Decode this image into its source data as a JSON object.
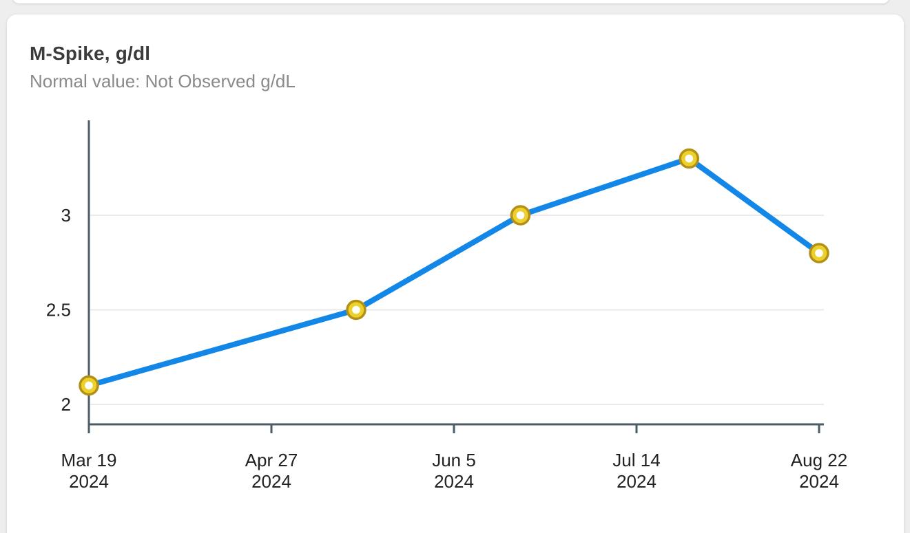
{
  "card": {
    "title": "M-Spike, g/dl",
    "subtitle": "Normal value: Not Observed g/dL"
  },
  "colors": {
    "page_bg": "#eeeeee",
    "card_bg": "#ffffff",
    "line": "#1287e8",
    "marker_fill": "#ecd02b",
    "marker_rim": "#b38f15",
    "marker_center": "#ffffff",
    "axis": "#4a5d66",
    "gridline": "#e9e9e9",
    "tick_text": "#222222",
    "title_text": "#3b3b3b",
    "subtitle_text": "#8a8a8a"
  },
  "chart_data": {
    "type": "line",
    "title": "M-Spike, g/dl",
    "subtitle": "Normal value: Not Observed g/dL",
    "unit": "g/dl",
    "xlabel": "",
    "ylabel": "",
    "ylim": [
      1.9,
      3.5
    ],
    "y_ticks": [
      3,
      2.5,
      2
    ],
    "grid": "horizontal",
    "legend_position": "none",
    "x_tick_labels": [
      [
        "Mar 19",
        "2024"
      ],
      [
        "Apr 27",
        "2024"
      ],
      [
        "Jun 5",
        "2024"
      ],
      [
        "Jul 14",
        "2024"
      ],
      [
        "Aug 22",
        "2024"
      ]
    ],
    "series": [
      {
        "name": "M-Spike",
        "points": [
          {
            "x_frac": 0.0,
            "value": 2.1
          },
          {
            "x_frac": 0.366,
            "value": 2.5
          },
          {
            "x_frac": 0.591,
            "value": 3.0
          },
          {
            "x_frac": 0.822,
            "value": 3.3
          },
          {
            "x_frac": 1.0,
            "value": 2.8
          }
        ]
      }
    ]
  }
}
